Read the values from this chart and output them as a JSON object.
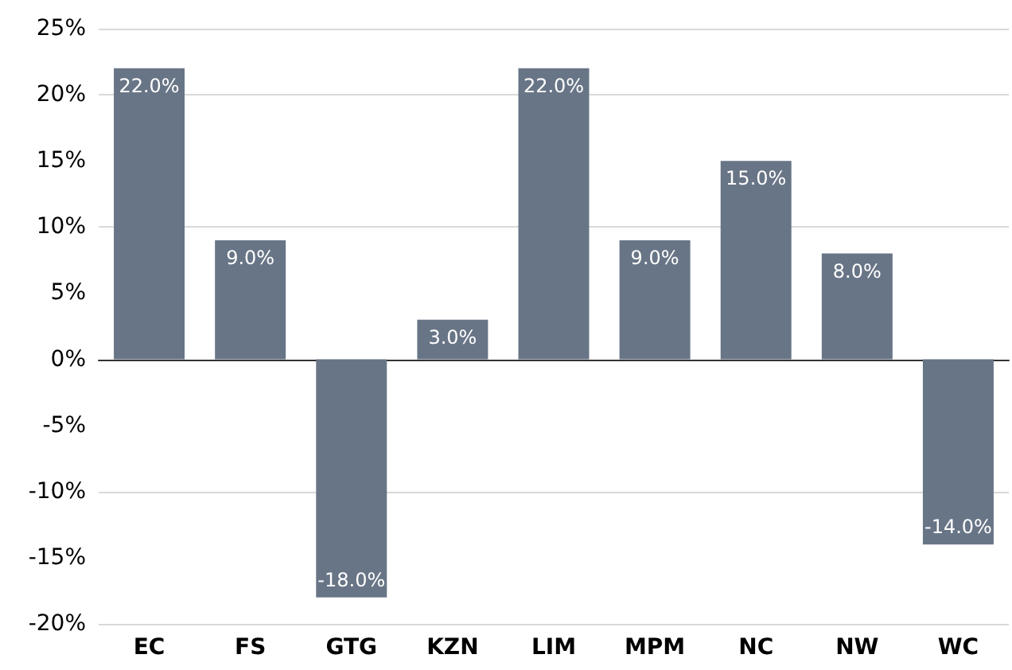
{
  "chart_data": {
    "type": "bar",
    "categories": [
      "EC",
      "FS",
      "GTG",
      "KZN",
      "LIM",
      "MPM",
      "NC",
      "NW",
      "WC"
    ],
    "values": [
      22,
      9,
      -18,
      3,
      22,
      9,
      15,
      8,
      -14
    ],
    "value_labels": [
      "22.0%",
      "9.0%",
      "-18.0%",
      "3.0%",
      "22.0%",
      "9.0%",
      "15.0%",
      "8.0%",
      "-14.0%"
    ],
    "color": "#687586",
    "ylim": [
      -20,
      25
    ],
    "yticks": [
      {
        "value": -20,
        "label": "-20%"
      },
      {
        "value": -15,
        "label": "-15%"
      },
      {
        "value": -10,
        "label": "-10%"
      },
      {
        "value": -5,
        "label": "-5%"
      },
      {
        "value": 0,
        "label": "0%"
      },
      {
        "value": 5,
        "label": "5%"
      },
      {
        "value": 10,
        "label": "10%"
      },
      {
        "value": 15,
        "label": "15%"
      },
      {
        "value": 20,
        "label": "20%"
      },
      {
        "value": 25,
        "label": "25%"
      }
    ],
    "grid": "y"
  }
}
